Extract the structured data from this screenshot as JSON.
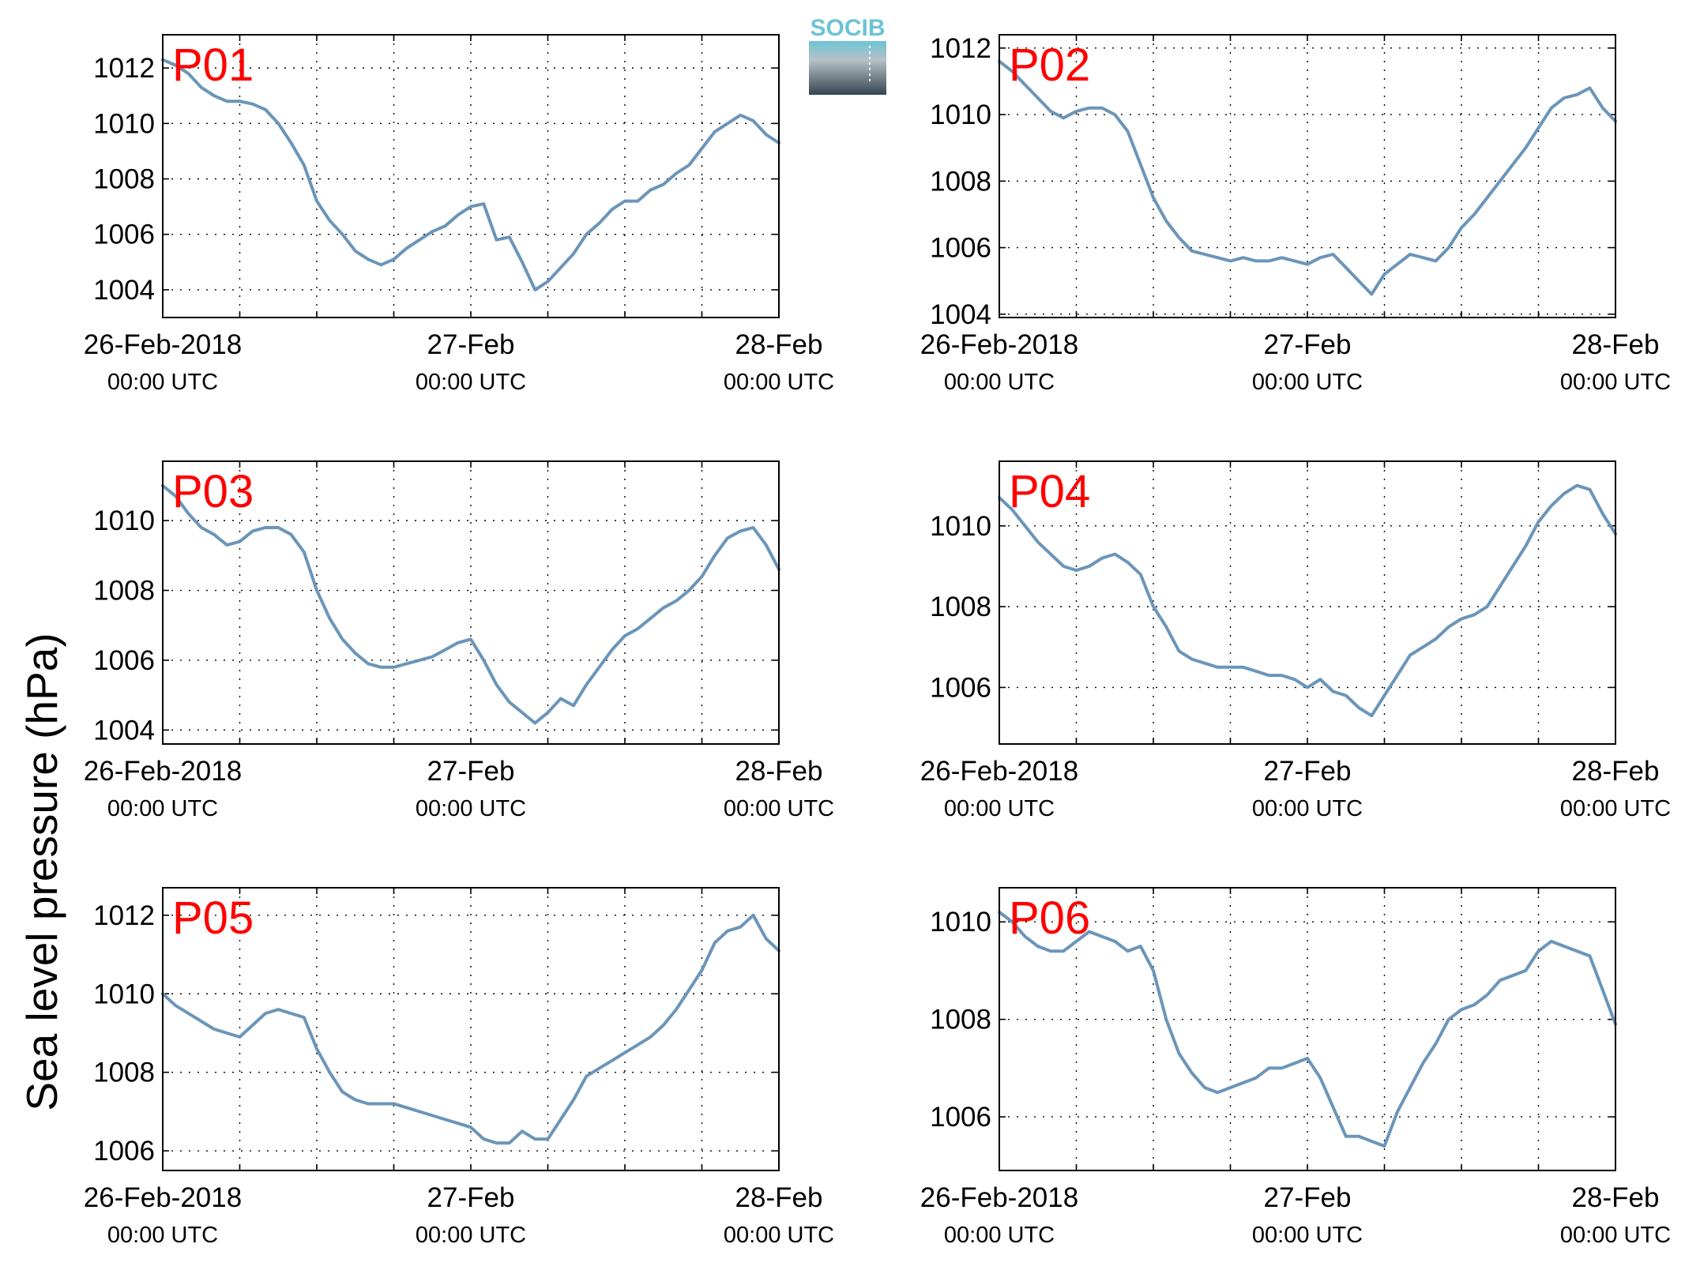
{
  "figure": {
    "ylabel": "Sea level pressure (hPa)",
    "logo_text": "SOCIB",
    "line_color": "#6b95b9",
    "label_color": "#ff0000"
  },
  "chart_data": [
    {
      "type": "line",
      "label": "P01",
      "ylim": [
        1003,
        1013.2
      ],
      "yticks": [
        1004,
        1006,
        1008,
        1010,
        1012
      ],
      "xlim": [
        0,
        48
      ],
      "xticks": [
        0,
        24,
        48
      ],
      "xtick_labels": [
        [
          "26-Feb-2018",
          "00:00 UTC"
        ],
        [
          "27-Feb",
          "00:00 UTC"
        ],
        [
          "28-Feb",
          "00:00 UTC"
        ]
      ],
      "grid": true,
      "x": [
        0,
        1,
        2,
        3,
        4,
        5,
        6,
        7,
        8,
        9,
        10,
        11,
        12,
        13,
        14,
        15,
        16,
        17,
        18,
        19,
        20,
        21,
        22,
        23,
        24,
        25,
        26,
        27,
        28,
        29,
        30,
        31,
        32,
        33,
        34,
        35,
        36,
        37,
        38,
        39,
        40,
        41,
        42,
        43,
        44,
        45,
        46,
        47,
        48
      ],
      "y": [
        1012.3,
        1012.1,
        1011.8,
        1011.3,
        1011.0,
        1010.8,
        1010.8,
        1010.7,
        1010.5,
        1010.0,
        1009.3,
        1008.5,
        1007.2,
        1006.5,
        1006.0,
        1005.4,
        1005.1,
        1004.9,
        1005.1,
        1005.5,
        1005.8,
        1006.1,
        1006.3,
        1006.7,
        1007.0,
        1007.1,
        1005.8,
        1005.9,
        1005.0,
        1004.0,
        1004.3,
        1004.8,
        1005.3,
        1006.0,
        1006.4,
        1006.9,
        1007.2,
        1007.2,
        1007.6,
        1007.8,
        1008.2,
        1008.5,
        1009.1,
        1009.7,
        1010.0,
        1010.3,
        1010.1,
        1009.6,
        1009.3
      ]
    },
    {
      "type": "line",
      "label": "P02",
      "ylim": [
        1003.9,
        1012.4
      ],
      "yticks": [
        1004,
        1006,
        1008,
        1010,
        1012
      ],
      "xlim": [
        0,
        48
      ],
      "xticks": [
        0,
        24,
        48
      ],
      "xtick_labels": [
        [
          "26-Feb-2018",
          "00:00 UTC"
        ],
        [
          "27-Feb",
          "00:00 UTC"
        ],
        [
          "28-Feb",
          "00:00 UTC"
        ]
      ],
      "grid": true,
      "x": [
        0,
        1,
        2,
        3,
        4,
        5,
        6,
        7,
        8,
        9,
        10,
        11,
        12,
        13,
        14,
        15,
        16,
        17,
        18,
        19,
        20,
        21,
        22,
        23,
        24,
        25,
        26,
        27,
        28,
        29,
        30,
        31,
        32,
        33,
        34,
        35,
        36,
        37,
        38,
        39,
        40,
        41,
        42,
        43,
        44,
        45,
        46,
        47,
        48
      ],
      "y": [
        1011.6,
        1011.3,
        1010.9,
        1010.5,
        1010.1,
        1009.9,
        1010.1,
        1010.2,
        1010.2,
        1010.0,
        1009.5,
        1008.5,
        1007.5,
        1006.8,
        1006.3,
        1005.9,
        1005.8,
        1005.7,
        1005.6,
        1005.7,
        1005.6,
        1005.6,
        1005.7,
        1005.6,
        1005.5,
        1005.7,
        1005.8,
        1005.4,
        1005.0,
        1004.6,
        1005.2,
        1005.5,
        1005.8,
        1005.7,
        1005.6,
        1006.0,
        1006.6,
        1007.0,
        1007.5,
        1008.0,
        1008.5,
        1009.0,
        1009.6,
        1010.2,
        1010.5,
        1010.6,
        1010.8,
        1010.2,
        1009.8
      ]
    },
    {
      "type": "line",
      "label": "P03",
      "ylim": [
        1003.6,
        1011.7
      ],
      "yticks": [
        1004,
        1006,
        1008,
        1010
      ],
      "xlim": [
        0,
        48
      ],
      "xticks": [
        0,
        24,
        48
      ],
      "xtick_labels": [
        [
          "26-Feb-2018",
          "00:00 UTC"
        ],
        [
          "27-Feb",
          "00:00 UTC"
        ],
        [
          "28-Feb",
          "00:00 UTC"
        ]
      ],
      "grid": true,
      "x": [
        0,
        1,
        2,
        3,
        4,
        5,
        6,
        7,
        8,
        9,
        10,
        11,
        12,
        13,
        14,
        15,
        16,
        17,
        18,
        19,
        20,
        21,
        22,
        23,
        24,
        25,
        26,
        27,
        28,
        29,
        30,
        31,
        32,
        33,
        34,
        35,
        36,
        37,
        38,
        39,
        40,
        41,
        42,
        43,
        44,
        45,
        46,
        47,
        48
      ],
      "y": [
        1011.0,
        1010.7,
        1010.2,
        1009.8,
        1009.6,
        1009.3,
        1009.4,
        1009.7,
        1009.8,
        1009.8,
        1009.6,
        1009.1,
        1008.0,
        1007.2,
        1006.6,
        1006.2,
        1005.9,
        1005.8,
        1005.8,
        1005.9,
        1006.0,
        1006.1,
        1006.3,
        1006.5,
        1006.6,
        1006.0,
        1005.3,
        1004.8,
        1004.5,
        1004.2,
        1004.5,
        1004.9,
        1004.7,
        1005.3,
        1005.8,
        1006.3,
        1006.7,
        1006.9,
        1007.2,
        1007.5,
        1007.7,
        1008.0,
        1008.4,
        1009.0,
        1009.5,
        1009.7,
        1009.8,
        1009.3,
        1008.6
      ]
    },
    {
      "type": "line",
      "label": "P04",
      "ylim": [
        1004.6,
        1011.6
      ],
      "yticks": [
        1006,
        1008,
        1010
      ],
      "xlim": [
        0,
        48
      ],
      "xticks": [
        0,
        24,
        48
      ],
      "xtick_labels": [
        [
          "26-Feb-2018",
          "00:00 UTC"
        ],
        [
          "27-Feb",
          "00:00 UTC"
        ],
        [
          "28-Feb",
          "00:00 UTC"
        ]
      ],
      "grid": true,
      "x": [
        0,
        1,
        2,
        3,
        4,
        5,
        6,
        7,
        8,
        9,
        10,
        11,
        12,
        13,
        14,
        15,
        16,
        17,
        18,
        19,
        20,
        21,
        22,
        23,
        24,
        25,
        26,
        27,
        28,
        29,
        30,
        31,
        32,
        33,
        34,
        35,
        36,
        37,
        38,
        39,
        40,
        41,
        42,
        43,
        44,
        45,
        46,
        47,
        48
      ],
      "y": [
        1010.7,
        1010.4,
        1010.0,
        1009.6,
        1009.3,
        1009.0,
        1008.9,
        1009.0,
        1009.2,
        1009.3,
        1009.1,
        1008.8,
        1008.0,
        1007.5,
        1006.9,
        1006.7,
        1006.6,
        1006.5,
        1006.5,
        1006.5,
        1006.4,
        1006.3,
        1006.3,
        1006.2,
        1006.0,
        1006.2,
        1005.9,
        1005.8,
        1005.5,
        1005.3,
        1005.8,
        1006.3,
        1006.8,
        1007.0,
        1007.2,
        1007.5,
        1007.7,
        1007.8,
        1008.0,
        1008.5,
        1009.0,
        1009.5,
        1010.1,
        1010.5,
        1010.8,
        1011.0,
        1010.9,
        1010.3,
        1009.8
      ]
    },
    {
      "type": "line",
      "label": "P05",
      "ylim": [
        1005.5,
        1012.7
      ],
      "yticks": [
        1006,
        1008,
        1010,
        1012
      ],
      "xlim": [
        0,
        48
      ],
      "xticks": [
        0,
        24,
        48
      ],
      "xtick_labels": [
        [
          "26-Feb-2018",
          "00:00 UTC"
        ],
        [
          "27-Feb",
          "00:00 UTC"
        ],
        [
          "28-Feb",
          "00:00 UTC"
        ]
      ],
      "grid": true,
      "x": [
        0,
        1,
        2,
        3,
        4,
        5,
        6,
        7,
        8,
        9,
        10,
        11,
        12,
        13,
        14,
        15,
        16,
        17,
        18,
        19,
        20,
        21,
        22,
        23,
        24,
        25,
        26,
        27,
        28,
        29,
        30,
        31,
        32,
        33,
        34,
        35,
        36,
        37,
        38,
        39,
        40,
        41,
        42,
        43,
        44,
        45,
        46,
        47,
        48
      ],
      "y": [
        1010.0,
        1009.7,
        1009.5,
        1009.3,
        1009.1,
        1009.0,
        1008.9,
        1009.2,
        1009.5,
        1009.6,
        1009.5,
        1009.4,
        1008.6,
        1008.0,
        1007.5,
        1007.3,
        1007.2,
        1007.2,
        1007.2,
        1007.1,
        1007.0,
        1006.9,
        1006.8,
        1006.7,
        1006.6,
        1006.3,
        1006.2,
        1006.2,
        1006.5,
        1006.3,
        1006.3,
        1006.8,
        1007.3,
        1007.9,
        1008.1,
        1008.3,
        1008.5,
        1008.7,
        1008.9,
        1009.2,
        1009.6,
        1010.1,
        1010.6,
        1011.3,
        1011.6,
        1011.7,
        1012.0,
        1011.4,
        1011.1
      ]
    },
    {
      "type": "line",
      "label": "P06",
      "ylim": [
        1004.9,
        1010.7
      ],
      "yticks": [
        1006,
        1008,
        1010
      ],
      "xlim": [
        0,
        48
      ],
      "xticks": [
        0,
        24,
        48
      ],
      "xtick_labels": [
        [
          "26-Feb-2018",
          "00:00 UTC"
        ],
        [
          "27-Feb",
          "00:00 UTC"
        ],
        [
          "28-Feb",
          "00:00 UTC"
        ]
      ],
      "grid": true,
      "x": [
        0,
        1,
        2,
        3,
        4,
        5,
        6,
        7,
        8,
        9,
        10,
        11,
        12,
        13,
        14,
        15,
        16,
        17,
        18,
        19,
        20,
        21,
        22,
        23,
        24,
        25,
        26,
        27,
        28,
        29,
        30,
        31,
        32,
        33,
        34,
        35,
        36,
        37,
        38,
        39,
        40,
        41,
        42,
        43,
        44,
        45,
        46,
        47,
        48
      ],
      "y": [
        1010.2,
        1010.0,
        1009.7,
        1009.5,
        1009.4,
        1009.4,
        1009.6,
        1009.8,
        1009.7,
        1009.6,
        1009.4,
        1009.5,
        1009.0,
        1008.0,
        1007.3,
        1006.9,
        1006.6,
        1006.5,
        1006.6,
        1006.7,
        1006.8,
        1007.0,
        1007.0,
        1007.1,
        1007.2,
        1006.8,
        1006.2,
        1005.6,
        1005.6,
        1005.5,
        1005.4,
        1006.1,
        1006.6,
        1007.1,
        1007.5,
        1008.0,
        1008.2,
        1008.3,
        1008.5,
        1008.8,
        1008.9,
        1009.0,
        1009.4,
        1009.6,
        1009.5,
        1009.4,
        1009.3,
        1008.6,
        1007.9
      ]
    }
  ]
}
